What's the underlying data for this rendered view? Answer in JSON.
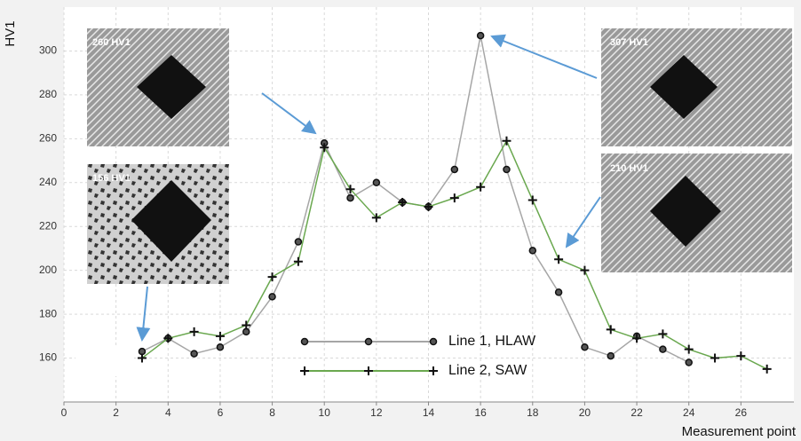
{
  "chart_data": {
    "type": "line",
    "x_label": "Measurement point",
    "y_label": "HV1",
    "xlim": [
      0,
      28
    ],
    "xticks": [
      0,
      2,
      4,
      6,
      8,
      10,
      12,
      14,
      16,
      18,
      20,
      22,
      24,
      26
    ],
    "ylim": [
      140,
      320
    ],
    "yticks": [
      160,
      180,
      200,
      220,
      240,
      260,
      280,
      300
    ],
    "grid": true,
    "series": [
      {
        "name": "Line 1, HLAW",
        "color": "#a6a6a6",
        "marker": "circle",
        "x": [
          3,
          4,
          5,
          6,
          7,
          8,
          9,
          10,
          11,
          12,
          13,
          14,
          15,
          16,
          17,
          18,
          19,
          20,
          21,
          22,
          23,
          24
        ],
        "values": [
          163,
          169,
          162,
          165,
          172,
          188,
          213,
          258,
          233,
          240,
          231,
          229,
          246,
          307,
          246,
          209,
          190,
          165,
          161,
          170,
          164,
          158
        ]
      },
      {
        "name": "Line 2, SAW",
        "color": "#6aa84f",
        "marker": "plus",
        "x": [
          3,
          4,
          5,
          6,
          7,
          8,
          9,
          10,
          11,
          12,
          13,
          14,
          15,
          16,
          17,
          18,
          19,
          20,
          21,
          22,
          23,
          24,
          25,
          26,
          27
        ],
        "values": [
          160,
          169,
          172,
          170,
          175,
          197,
          204,
          256,
          237,
          224,
          231,
          229,
          233,
          238,
          259,
          232,
          205,
          200,
          173,
          169,
          171,
          164,
          160,
          161,
          155
        ]
      }
    ],
    "annotations": [
      "260 HV1",
      "156 HV1",
      "307 HV1",
      "210 HV1"
    ]
  }
}
